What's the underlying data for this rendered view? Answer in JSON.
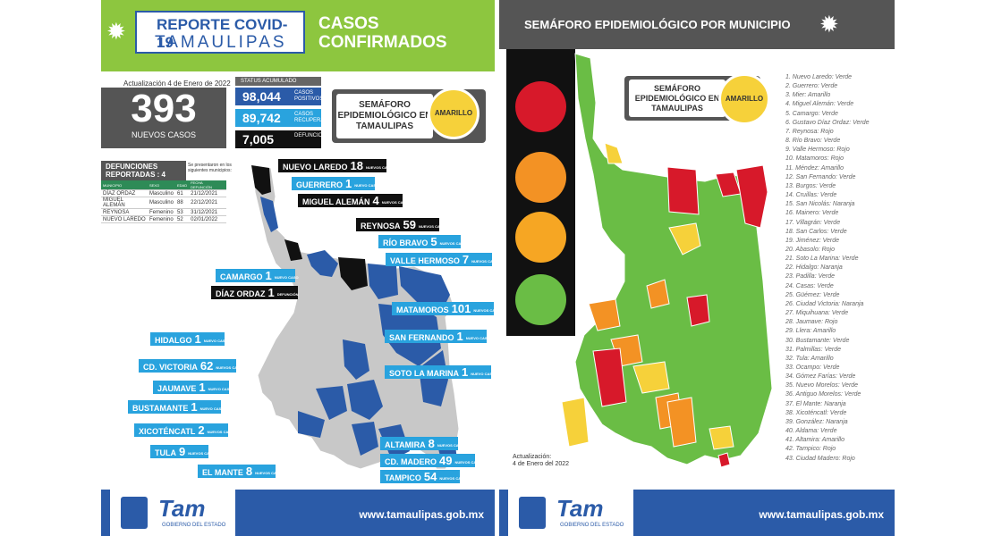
{
  "left": {
    "report_title_1": "REPORTE COVID-19",
    "report_title_2": "TAMAULIPAS",
    "casos_1": "CASOS",
    "casos_2": "CONFIRMADOS",
    "updated": "Actualización 4 de Enero de 2022",
    "new_cases_value": "393",
    "new_cases_label": "NUEVOS CASOS",
    "status_header": "STATUS ACUMULADO",
    "status": [
      {
        "value": "98,044",
        "label": "CASOS POSITIVOS",
        "color": "#2b5ba8"
      },
      {
        "value": "89,742",
        "label": "CASOS RECUPERADOS",
        "color": "#29a3de"
      },
      {
        "value": "7,005",
        "label": "DEFUNCIONES",
        "color": "#111111"
      }
    ],
    "semaforo_label": "SEMÁFORO EPIDEMIOLÓGICO EN TAMAULIPAS",
    "semaforo_value": "AMARILLO",
    "defunciones_title": "DEFUNCIONES REPORTADAS : 4",
    "defunciones_note": "Se presentaron en los siguientes municipios:",
    "table_headers": [
      "MUNICIPIO",
      "SEXO",
      "EDAD",
      "FECHA DEFUNCIÓN"
    ],
    "table_rows": [
      [
        "DÍAZ ORDAZ",
        "Masculino",
        "61",
        "21/12/2021"
      ],
      [
        "MIGUEL ALEMÁN",
        "Masculino",
        "88",
        "22/12/2021"
      ],
      [
        "REYNOSA",
        "Femenino",
        "53",
        "31/12/2021"
      ],
      [
        "NUEVO LAREDO",
        "Femenino",
        "52",
        "02/01/2022"
      ]
    ],
    "callouts": [
      {
        "name": "NUEVO LAREDO",
        "value": "18",
        "sub": "NUEVOS CASOS"
      },
      {
        "name": "GUERRERO",
        "value": "1",
        "sub": "NUEVO CASO"
      },
      {
        "name": "MIGUEL ALEMÁN",
        "value": "4",
        "sub": "NUEVOS CASOS"
      },
      {
        "name": "REYNOSA",
        "value": "59",
        "sub": "NUEVOS CASOS"
      },
      {
        "name": "RÍO BRAVO",
        "value": "5",
        "sub": "NUEVOS CASOS"
      },
      {
        "name": "VALLE HERMOSO",
        "value": "7",
        "sub": "NUEVOS CASOS"
      },
      {
        "name": "CAMARGO",
        "value": "1",
        "sub": "NUEVO CASO"
      },
      {
        "name": "DÍAZ ORDAZ",
        "value": "1",
        "sub": "DEFUNCIÓN"
      },
      {
        "name": "MATAMOROS",
        "value": "101",
        "sub": "NUEVOS CASOS"
      },
      {
        "name": "HIDALGO",
        "value": "1",
        "sub": "NUEVO CASO"
      },
      {
        "name": "SAN FERNANDO",
        "value": "1",
        "sub": "NUEVO CASO"
      },
      {
        "name": "CD. VICTORIA",
        "value": "62",
        "sub": "NUEVOS CASOS"
      },
      {
        "name": "SOTO LA MARINA",
        "value": "1",
        "sub": "NUEVO CASO"
      },
      {
        "name": "JAUMAVE",
        "value": "1",
        "sub": "NUEVO CASO"
      },
      {
        "name": "BUSTAMANTE",
        "value": "1",
        "sub": "NUEVO CASO"
      },
      {
        "name": "XICOTÉNCATL",
        "value": "2",
        "sub": "NUEVOS CASOS"
      },
      {
        "name": "TULA",
        "value": "9",
        "sub": "NUEVOS CASOS"
      },
      {
        "name": "ALTAMIRA",
        "value": "8",
        "sub": "NUEVOS CASOS"
      },
      {
        "name": "CD. MADERO",
        "value": "49",
        "sub": "NUEVOS CASOS"
      },
      {
        "name": "EL MANTE",
        "value": "8",
        "sub": "NUEVOS CASOS"
      },
      {
        "name": "TAMPICO",
        "value": "54",
        "sub": "NUEVOS CASOS"
      }
    ],
    "footer_logo": "Tam",
    "footer_gov": "GOBIERNO DEL ESTADO",
    "footer_url": "www.tamaulipas.gob.mx"
  },
  "right": {
    "title": "SEMÁFORO EPIDEMIOLÓGICO POR MUNICIPIO",
    "semaforo_label": "SEMÁFORO EPIDEMIOLÓGICO EN TAMAULIPAS",
    "semaforo_value": "AMARILLO",
    "updated_1": "Actualización:",
    "updated_2": "4 de Enero del 2022",
    "legend": [
      "1. Nuevo Laredo: Verde",
      "2. Guerrero: Verde",
      "3. Mier: Amarillo",
      "4. Miguel Alemán: Verde",
      "5. Camargo: Verde",
      "6. Gustavo Díaz Ordaz: Verde",
      "7. Reynosa: Rojo",
      "8. Río Bravo: Verde",
      "9. Valle Hermoso: Rojo",
      "10. Matamoros: Rojo",
      "11. Méndez: Amarillo",
      "12. San Fernando: Verde",
      "13. Burgos: Verde",
      "14. Cruillas: Verde",
      "15. San Nicolás: Naranja",
      "16. Mainero: Verde",
      "17. Villagrán: Verde",
      "18. San Carlos: Verde",
      "19. Jiménez: Verde",
      "20. Abasolo: Rojo",
      "21. Soto La Marina: Verde",
      "22. Hidalgo: Naranja",
      "23. Padilla: Verde",
      "24. Casas: Verde",
      "25. Güémez: Verde",
      "26. Ciudad Victoria: Naranja",
      "27. Miquihuana: Verde",
      "28. Jaumave: Rojo",
      "29. Llera: Amarillo",
      "30. Bustamante: Verde",
      "31. Palmillas: Verde",
      "32. Tula: Amarillo",
      "33. Ocampo: Verde",
      "34. Gómez Farías: Verde",
      "35. Nuevo Morelos: Verde",
      "36. Antiguo Morelos: Verde",
      "37. El Mante: Naranja",
      "38. Xicoténcatl: Verde",
      "39. González: Naranja",
      "40. Aldama: Verde",
      "41. Altamira: Amarillo",
      "42. Tampico: Rojo",
      "43. Ciudad Madero: Rojo"
    ],
    "footer_logo": "Tam",
    "footer_gov": "GOBIERNO DEL ESTADO",
    "footer_url": "www.tamaulipas.gob.mx"
  },
  "colors": {
    "green_header": "#8dc63f",
    "blue": "#2b5ba8",
    "light_blue": "#29a3de",
    "gray": "#555555",
    "verde": "#6abd45",
    "amarillo": "#f6d13a",
    "naranja": "#f39224",
    "rojo": "#d7192a"
  }
}
